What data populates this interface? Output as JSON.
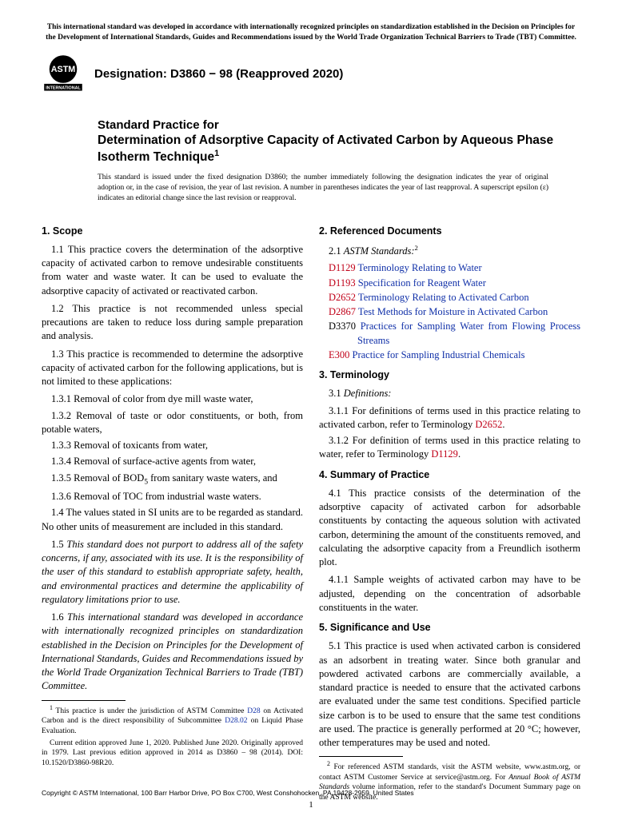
{
  "top_notice": "This international standard was developed in accordance with internationally recognized principles on standardization established in the Decision on Principles for the Development of International Standards, Guides and Recommendations issued by the World Trade Organization Technical Barriers to Trade (TBT) Committee.",
  "designation": "Designation: D3860 − 98 (Reapproved 2020)",
  "title_kicker": "Standard Practice for",
  "title_main": "Determination of Adsorptive Capacity of Activated Carbon by Aqueous Phase Isotherm Technique",
  "issuance": "This standard is issued under the fixed designation D3860; the number immediately following the designation indicates the year of original adoption or, in the case of revision, the year of last revision. A number in parentheses indicates the year of last reapproval. A superscript epsilon (ε) indicates an editorial change since the last revision or reapproval.",
  "sec1_head": "1. Scope",
  "p1_1": "1.1 This practice covers the determination of the adsorptive capacity of activated carbon to remove undesirable constituents from water and waste water. It can be used to evaluate the adsorptive capacity of activated or reactivated carbon.",
  "p1_2": "1.2 This practice is not recommended unless special precautions are taken to reduce loss during sample preparation and analysis.",
  "p1_3": "1.3 This practice is recommended to determine the adsorptive capacity of activated carbon for the following applications, but is not limited to these applications:",
  "p1_3_1": "1.3.1 Removal of color from dye mill waste water,",
  "p1_3_2": "1.3.2 Removal of taste or odor constituents, or both, from potable waters,",
  "p1_3_3": "1.3.3 Removal of toxicants from water,",
  "p1_3_4": "1.3.4 Removal of surface-active agents from water,",
  "p1_3_5a": "1.3.5 Removal of BOD",
  "p1_3_5b": " from sanitary waste waters, and",
  "p1_3_6": "1.3.6 Removal of TOC from industrial waste waters.",
  "p1_4": "1.4 The values stated in SI units are to be regarded as standard. No other units of measurement are included in this standard.",
  "p1_5": "1.5 This standard does not purport to address all of the safety concerns, if any, associated with its use. It is the responsibility of the user of this standard to establish appropriate safety, health, and environmental practices and determine the applicability of regulatory limitations prior to use.",
  "p1_6": "1.6 This international standard was developed in accordance with internationally recognized principles on standardization established in the Decision on Principles for the Development of International Standards, Guides and Recommendations issued by the World Trade Organization Technical Barriers to Trade (TBT) Committee.",
  "sec2_head": "2. Referenced Documents",
  "p2_1a": "2.1 ",
  "p2_1b": "ASTM Standards:",
  "refs": [
    {
      "code": "D1129",
      "title": "Terminology Relating to Water"
    },
    {
      "code": "D1193",
      "title": "Specification for Reagent Water"
    },
    {
      "code": "D2652",
      "title": "Terminology Relating to Activated Carbon"
    },
    {
      "code": "D2867",
      "title": "Test Methods for Moisture in Activated Carbon"
    },
    {
      "code": "D3370",
      "title": "Practices for Sampling Water from Flowing Process Streams"
    },
    {
      "code": "E300",
      "title": "Practice for Sampling Industrial Chemicals"
    }
  ],
  "sec3_head": "3. Terminology",
  "p3_1": "3.1 Definitions:",
  "p3_1_1a": "3.1.1 For definitions of terms used in this practice relating to activated carbon, refer to Terminology ",
  "p3_1_1b": "D2652",
  "p3_1_2a": "3.1.2 For definition of terms used in this practice relating to water, refer to Terminology ",
  "p3_1_2b": "D1129",
  "sec4_head": "4. Summary of Practice",
  "p4_1": "4.1 This practice consists of the determination of the adsorptive capacity of activated carbon for adsorbable constituents by contacting the aqueous solution with activated carbon, determining the amount of the constituents removed, and calculating the adsorptive capacity from a Freundlich isotherm plot.",
  "p4_1_1": "4.1.1 Sample weights of activated carbon may have to be adjusted, depending on the concentration of adsorbable constituents in the water.",
  "sec5_head": "5. Significance and Use",
  "p5_1": "5.1 This practice is used when activated carbon is considered as an adsorbent in treating water. Since both granular and powdered activated carbons are commercially available, a standard practice is needed to ensure that the activated carbons are evaluated under the same test conditions. Specified particle size carbon is to be used to ensure that the same test conditions are used. The practice is generally performed at 20 °C; however, other temperatures may be used and noted.",
  "fn1a": " This practice is under the jurisdiction of ASTM Committee ",
  "fn1link1": "D28",
  "fn1b": " on Activated Carbon and is the direct responsibility of Subcommittee ",
  "fn1link2": "D28.02",
  "fn1c": " on Liquid Phase Evaluation.",
  "fn1d": "Current edition approved June 1, 2020. Published June 2020. Originally approved in 1979. Last previous edition approved in 2014 as D3860 – 98 (2014). DOI: 10.1520/D3860-98R20.",
  "fn2": " For referenced ASTM standards, visit the ASTM website, www.astm.org, or contact ASTM Customer Service at service@astm.org. For Annual Book of ASTM Standards volume information, refer to the standard's Document Summary page on the ASTM website.",
  "copyright": "Copyright © ASTM International, 100 Barr Harbor Drive, PO Box C700, West Conshohocken, PA 19428-2959. United States",
  "pagenum": "1",
  "colors": {
    "ref_code": "#c00018",
    "link": "#1030a8",
    "text": "#000000",
    "background": "#ffffff"
  },
  "logo_label": "ASTM INTERNATIONAL"
}
